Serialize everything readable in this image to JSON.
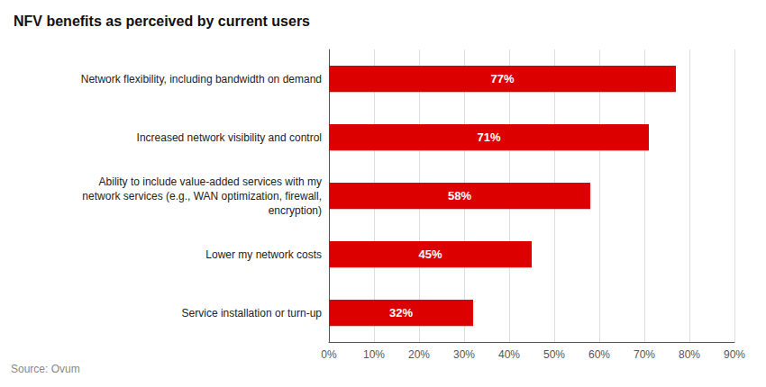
{
  "chart_data": {
    "type": "bar",
    "orientation": "horizontal",
    "title": "NFV benefits as perceived by current users",
    "categories": [
      "Service installation or turn-up",
      "Lower my network costs",
      "Ability to include value-added services with my\nnetwork services (e.g., WAN optimization, firewall,\nencryption)",
      "Increased network visibility and control",
      "Network flexibility, including bandwidth on demand"
    ],
    "values": [
      32,
      45,
      58,
      71,
      77
    ],
    "value_labels": [
      "32%",
      "45%",
      "58%",
      "71%",
      "77%"
    ],
    "data_labels": true,
    "color": "#dd0000",
    "xlim": [
      0,
      90
    ],
    "xticks": [
      {
        "value": 0,
        "label": "0%"
      },
      {
        "value": 10,
        "label": "10%"
      },
      {
        "value": 20,
        "label": "20%"
      },
      {
        "value": 30,
        "label": "30%"
      },
      {
        "value": 40,
        "label": "40%"
      },
      {
        "value": 50,
        "label": "50%"
      },
      {
        "value": 60,
        "label": "60%"
      },
      {
        "value": 70,
        "label": "70%"
      },
      {
        "value": 80,
        "label": "80%"
      },
      {
        "value": 90,
        "label": "90%"
      }
    ],
    "grid": true,
    "annotations": [
      "Source: Ovum"
    ]
  }
}
